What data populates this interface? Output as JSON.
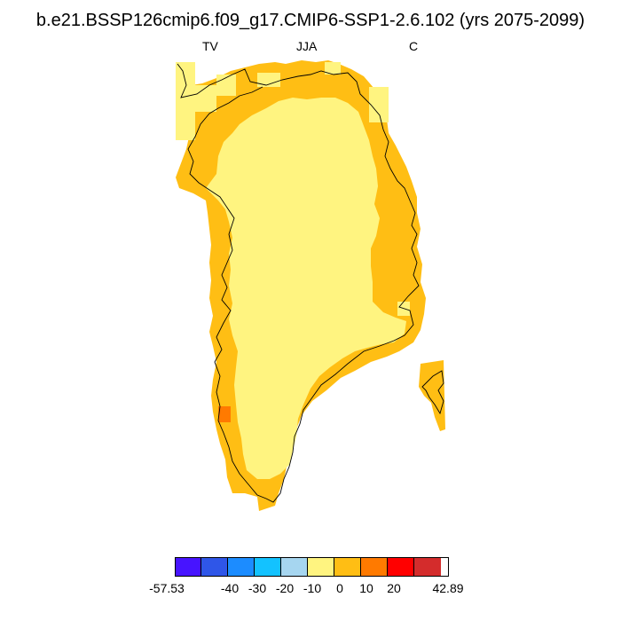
{
  "figure": {
    "title": "b.e21.BSSP126cmip6.f09_g17.CMIP6-SSP1-2.6.102 (yrs 2075-2099)",
    "subtitle_left": "TV",
    "subtitle_center": "JJA",
    "subtitle_right": "C"
  },
  "map": {
    "region": "Greenland",
    "field": "TV",
    "season": "JJA",
    "units": "C",
    "interior_color": "#fff480",
    "coastal_band_color": "#ffbe14",
    "hotspot_color": "#ff7a00"
  },
  "colorbar": {
    "colors": [
      "#4714ff",
      "#2f56e8",
      "#1c8cff",
      "#13c2ff",
      "#a6d6f0",
      "#fff480",
      "#ffbe14",
      "#ff7a00",
      "#ff0000",
      "#d42c2c"
    ],
    "labels": [
      "-57.53",
      "-40",
      "-30",
      "-20",
      "-10",
      "0",
      "10",
      "20",
      "42.89"
    ]
  }
}
